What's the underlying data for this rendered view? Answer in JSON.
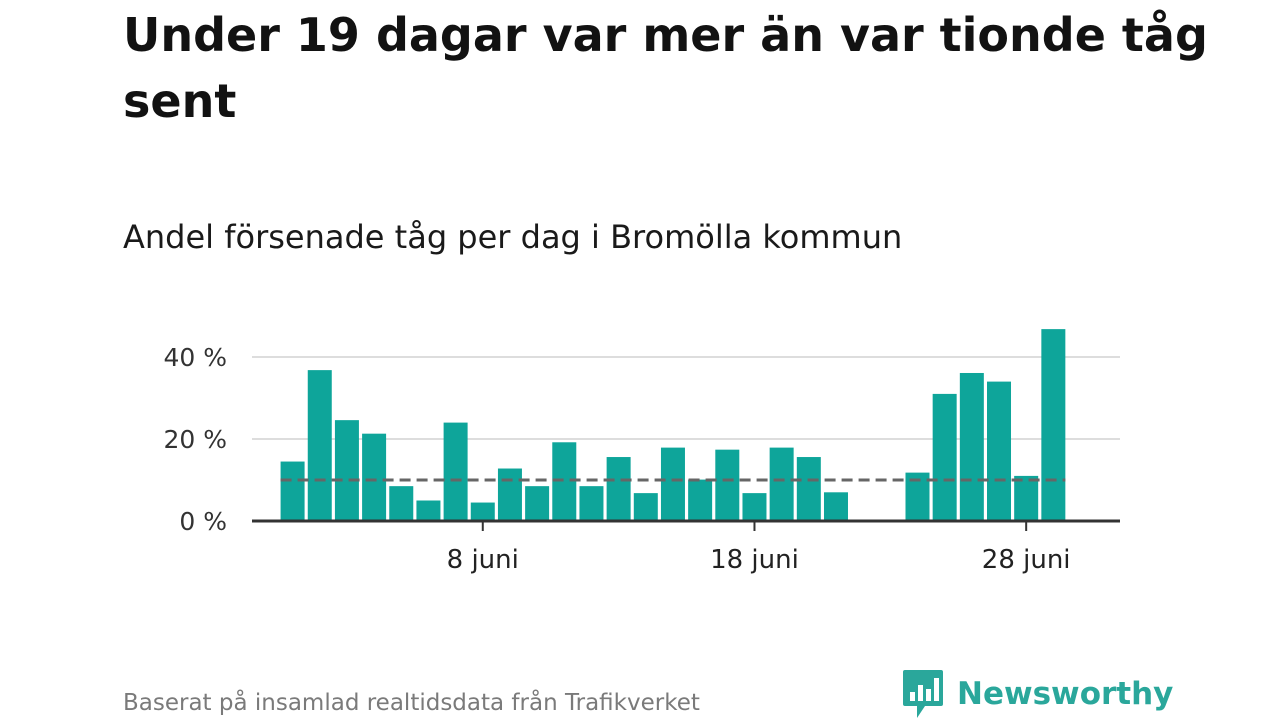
{
  "title": "Under 19 dagar var mer än var tionde tåg sent",
  "subtitle": "Andel försenade tåg per dag i Bromölla kommun",
  "source": "Baserat på insamlad realtidsdata från Trafikverket",
  "brand": {
    "name": "Newsworthy",
    "icon": "newsworthy-logo-icon",
    "color": "#2aa79b"
  },
  "colors": {
    "bar": "#0ea59a",
    "reference_line": "#666666",
    "grid": "#dddddd",
    "axis": "#333333"
  },
  "chart_data": {
    "type": "bar",
    "title": "Andel försenade tåg per dag i Bromölla kommun",
    "x_unit": "day of June",
    "days": [
      1,
      2,
      3,
      4,
      5,
      6,
      7,
      8,
      9,
      10,
      11,
      12,
      13,
      14,
      15,
      16,
      17,
      18,
      19,
      20,
      21,
      22,
      23,
      24,
      25,
      26,
      27,
      28,
      29
    ],
    "values": [
      14.5,
      36.8,
      24.6,
      21.3,
      8.5,
      5.0,
      24.0,
      4.5,
      12.8,
      8.5,
      19.2,
      8.5,
      15.6,
      6.8,
      17.9,
      10.1,
      17.4,
      6.8,
      17.9,
      15.6,
      7.0,
      null,
      null,
      11.8,
      31.0,
      36.1,
      34.0,
      11.0,
      46.8
    ],
    "reference_line": 10,
    "ylim": [
      0,
      47
    ],
    "y_ticks": [
      0,
      20,
      40
    ],
    "y_tick_labels": [
      "0 %",
      "20 %",
      "40 %"
    ],
    "x_ticks": [
      8,
      18,
      28
    ],
    "x_tick_labels": [
      "8 juni",
      "18 juni",
      "28 juni"
    ],
    "grid": true,
    "legend": false
  }
}
